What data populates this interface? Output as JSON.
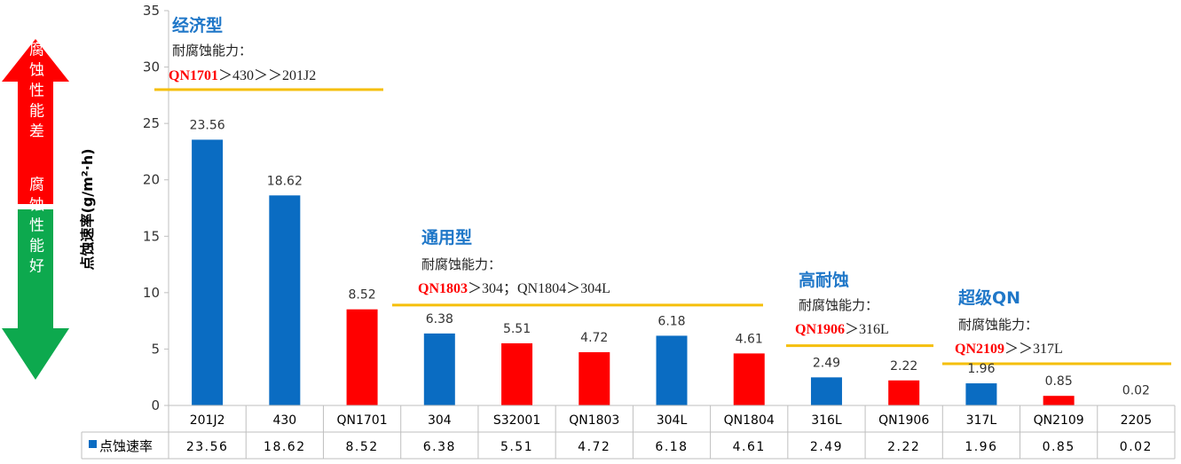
{
  "colors": {
    "blue": "#0A6CC2",
    "red": "#FF0000",
    "gold": "#F5BF0A",
    "green": "#0DA94E",
    "grid": "#BFBFBF",
    "text": "#333333",
    "heading_blue": "#1F77C8"
  },
  "arrows": {
    "up_text": "腐蚀性能差",
    "down_text": "腐蚀性能好"
  },
  "chart_data": {
    "type": "bar",
    "title": "",
    "xlabel": "",
    "ylabel": "点蚀速率(g/m²·h)",
    "ylim": [
      0,
      35
    ],
    "yticks": [
      0,
      5,
      10,
      15,
      20,
      25,
      30,
      35
    ],
    "grid": false,
    "categories": [
      "201J2",
      "430",
      "QN1701",
      "304",
      "S32001",
      "QN1803",
      "304L",
      "QN1804",
      "316L",
      "QN1906",
      "317L",
      "QN2109",
      "2205"
    ],
    "series": [
      {
        "name": "点蚀速率",
        "values": [
          23.56,
          18.62,
          8.52,
          6.38,
          5.51,
          4.72,
          6.18,
          4.61,
          2.49,
          2.22,
          1.96,
          0.85,
          0.02
        ],
        "colors": [
          "blue",
          "blue",
          "red",
          "blue",
          "red",
          "red",
          "blue",
          "red",
          "blue",
          "red",
          "blue",
          "red",
          "blue"
        ]
      }
    ],
    "data_labels": [
      "23.56",
      "18.62",
      "8.52",
      "6.38",
      "5.51",
      "4.72",
      "6.18",
      "4.61",
      "2.49",
      "2.22",
      "1.96",
      "0.85",
      "0.02"
    ],
    "table_values": [
      "23.56",
      "18.62",
      "8.52",
      "6.38",
      "5.51",
      "4.72",
      "6.18",
      "4.61",
      "2.49",
      "2.22",
      "1.96",
      "0.85",
      "0.02"
    ],
    "table_series_label": "点蚀速率",
    "groups": [
      {
        "title": "经济型",
        "subtitle": "耐腐蚀能力：",
        "red": "QN1701",
        "rest": "＞430＞＞201J2",
        "line_value": 28
      },
      {
        "title": "通用型",
        "subtitle": "耐腐蚀能力：",
        "red": "QN1803",
        "rest": "＞304；QN1804＞304L",
        "line_value": 8.9
      },
      {
        "title": "高耐蚀",
        "subtitle": "耐腐蚀能力：",
        "red": "QN1906",
        "rest": "＞316L",
        "line_value": 5.3
      },
      {
        "title": "超级QN",
        "subtitle": "耐腐蚀能力：",
        "red": "QN2109",
        "rest": "＞＞317L",
        "line_value": 3.7
      }
    ]
  }
}
